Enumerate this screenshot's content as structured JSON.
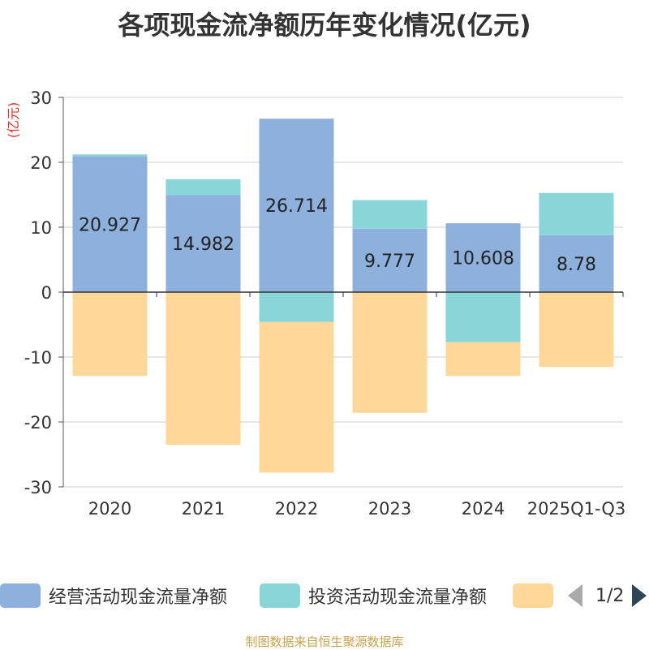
{
  "chart_data": {
    "type": "bar",
    "stacked": true,
    "title": "各项现金流净额历年变化情况(亿元)",
    "ylabel": "(亿元)",
    "xlabel": "",
    "ylim": [
      -30,
      30
    ],
    "yticks": [
      30,
      20,
      10,
      0,
      -10,
      -20,
      -30
    ],
    "categories": [
      "2020",
      "2021",
      "2022",
      "2023",
      "2024",
      "2025Q1-Q3"
    ],
    "series": [
      {
        "name": "经营活动现金流量净额",
        "color": "#8eb0dc",
        "values": [
          20.927,
          14.982,
          26.714,
          9.777,
          10.608,
          8.78
        ],
        "labels": [
          "20.927",
          "14.982",
          "26.714",
          "9.777",
          "10.608",
          "8.78"
        ]
      },
      {
        "name": "投资活动现金流量净额",
        "color": "#88d6d8",
        "values": [
          0.3,
          2.4,
          -4.6,
          4.4,
          -7.7,
          6.5
        ]
      },
      {
        "name": "",
        "color": "#ffd899",
        "values": [
          -12.9,
          -23.5,
          -23.2,
          -18.6,
          -5.2,
          -11.5
        ]
      }
    ],
    "legend_position": "bottom",
    "pager": "1/2"
  },
  "source": "制图数据来自恒生聚源数据库"
}
